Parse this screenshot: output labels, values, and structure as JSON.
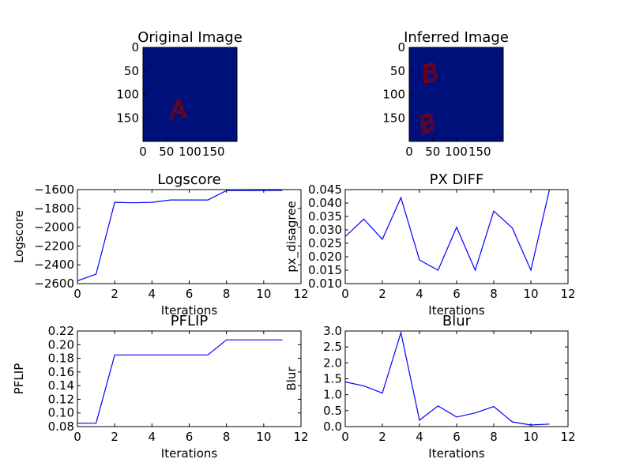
{
  "figure": {
    "background": "#ffffff"
  },
  "chart_data": [
    {
      "type": "image",
      "title": "Original Image",
      "colormap_background": "#00107a",
      "letter_color": "#8b0000",
      "letters": [
        {
          "char": "A",
          "x": 75,
          "y": 135,
          "rotation": -8,
          "size": 30
        }
      ],
      "xlim": [
        0,
        200
      ],
      "ylim": [
        200,
        0
      ],
      "xticks": [
        0,
        50,
        100,
        150
      ],
      "xtick_labels": [
        "0",
        "50",
        "100",
        "150"
      ],
      "yticks": [
        0,
        50,
        100,
        150
      ],
      "ytick_labels": [
        "0",
        "50",
        "100",
        "150"
      ]
    },
    {
      "type": "image",
      "title": "Inferred Image",
      "colormap_background": "#00107a",
      "letter_color": "#8b0000",
      "letters": [
        {
          "char": "B",
          "x": 45,
          "y": 58,
          "rotation": -12,
          "size": 30
        },
        {
          "char": "B",
          "x": 40,
          "y": 165,
          "rotation": -20,
          "size": 38
        }
      ],
      "xlim": [
        0,
        200
      ],
      "ylim": [
        200,
        0
      ],
      "xticks": [
        0,
        50,
        100,
        150
      ],
      "xtick_labels": [
        "0",
        "50",
        "100",
        "150"
      ],
      "yticks": [
        0,
        50,
        100,
        150
      ],
      "ytick_labels": [
        "0",
        "50",
        "100",
        "150"
      ]
    },
    {
      "type": "line",
      "title": "Logscore",
      "xlabel": "Iterations",
      "ylabel": "Logscore",
      "xlim": [
        0,
        12
      ],
      "ylim": [
        -2600,
        -1600
      ],
      "xticks": [
        0,
        2,
        4,
        6,
        8,
        10,
        12
      ],
      "yticks": [
        -2600,
        -2400,
        -2200,
        -2000,
        -1800,
        -1600
      ],
      "ytick_labels": [
        "−2600",
        "−2400",
        "−2200",
        "−2000",
        "−1800",
        "−1600"
      ],
      "line_color": "#0000ff",
      "x": [
        0,
        1,
        2,
        3,
        4,
        5,
        6,
        7,
        8,
        9,
        10,
        11
      ],
      "y": [
        -2570,
        -2500,
        -1735,
        -1740,
        -1735,
        -1710,
        -1710,
        -1710,
        -1610,
        -1610,
        -1608,
        -1608
      ]
    },
    {
      "type": "line",
      "title": "PX DIFF",
      "xlabel": "Iterations",
      "ylabel": "px_disagree",
      "xlim": [
        0,
        12
      ],
      "ylim": [
        0.01,
        0.045
      ],
      "xticks": [
        0,
        2,
        4,
        6,
        8,
        10,
        12
      ],
      "yticks": [
        0.01,
        0.015,
        0.02,
        0.025,
        0.03,
        0.035,
        0.04,
        0.045
      ],
      "ytick_labels": [
        "0.010",
        "0.015",
        "0.020",
        "0.025",
        "0.030",
        "0.035",
        "0.040",
        "0.045"
      ],
      "line_color": "#0000ff",
      "x": [
        0,
        1,
        2,
        3,
        4,
        5,
        6,
        7,
        8,
        9,
        10,
        11
      ],
      "y": [
        0.0275,
        0.034,
        0.0265,
        0.042,
        0.0188,
        0.015,
        0.031,
        0.015,
        0.037,
        0.0307,
        0.015,
        0.045
      ]
    },
    {
      "type": "line",
      "title": "PFLIP",
      "xlabel": "Iterations",
      "ylabel": "PFLIP",
      "xlim": [
        0,
        12
      ],
      "ylim": [
        0.08,
        0.22
      ],
      "xticks": [
        0,
        2,
        4,
        6,
        8,
        10,
        12
      ],
      "yticks": [
        0.08,
        0.1,
        0.12,
        0.14,
        0.16,
        0.18,
        0.2,
        0.22
      ],
      "ytick_labels": [
        "0.08",
        "0.10",
        "0.12",
        "0.14",
        "0.16",
        "0.18",
        "0.20",
        "0.22"
      ],
      "line_color": "#0000ff",
      "x": [
        0,
        1,
        2,
        3,
        4,
        5,
        6,
        7,
        8,
        9,
        10,
        11
      ],
      "y": [
        0.085,
        0.085,
        0.185,
        0.185,
        0.185,
        0.185,
        0.185,
        0.185,
        0.207,
        0.207,
        0.207,
        0.207
      ]
    },
    {
      "type": "line",
      "title": "Blur",
      "xlabel": "Iterations",
      "ylabel": "Blur",
      "xlim": [
        0,
        12
      ],
      "ylim": [
        0.0,
        3.0
      ],
      "xticks": [
        0,
        2,
        4,
        6,
        8,
        10,
        12
      ],
      "yticks": [
        0.0,
        0.5,
        1.0,
        1.5,
        2.0,
        2.5,
        3.0
      ],
      "ytick_labels": [
        "0.0",
        "0.5",
        "1.0",
        "1.5",
        "2.0",
        "2.5",
        "3.0"
      ],
      "line_color": "#0000ff",
      "x": [
        0,
        1,
        2,
        3,
        4,
        5,
        6,
        7,
        8,
        9,
        10,
        11
      ],
      "y": [
        1.4,
        1.28,
        1.05,
        2.95,
        0.2,
        0.65,
        0.3,
        0.43,
        0.63,
        0.15,
        0.05,
        0.08
      ]
    }
  ]
}
